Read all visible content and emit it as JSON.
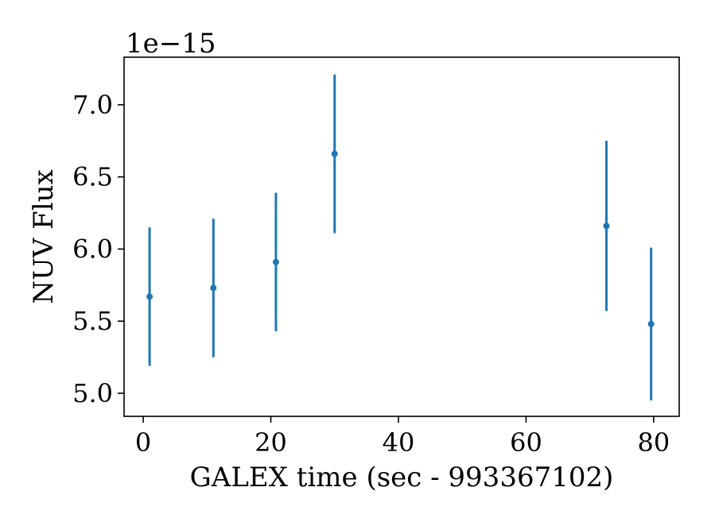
{
  "chart_data": {
    "type": "scatter",
    "title": "",
    "xlabel": "GALEX time (sec - 993367102)",
    "ylabel": "NUV Flux",
    "y_offset_label": "1e−15",
    "xlim": [
      -3,
      84
    ],
    "ylim": [
      4.84,
      7.33
    ],
    "x_ticks": [
      0,
      20,
      40,
      60,
      80
    ],
    "x_tick_labels": [
      "0",
      "20",
      "40",
      "60",
      "80"
    ],
    "y_ticks": [
      5.0,
      5.5,
      6.0,
      6.5,
      7.0
    ],
    "y_tick_labels": [
      "5.0",
      "5.5",
      "6.0",
      "6.5",
      "7.0"
    ],
    "grid": false,
    "legend": "none",
    "series": [
      {
        "color": "#1f77b4",
        "points": [
          {
            "x": 1.0,
            "y": 5.67,
            "err": 0.48
          },
          {
            "x": 11.0,
            "y": 5.73,
            "err": 0.48
          },
          {
            "x": 20.8,
            "y": 5.91,
            "err": 0.48
          },
          {
            "x": 30.0,
            "y": 6.66,
            "err": 0.55
          },
          {
            "x": 72.6,
            "y": 6.16,
            "err": 0.59
          },
          {
            "x": 79.6,
            "y": 5.48,
            "err": 0.53
          }
        ]
      }
    ]
  }
}
